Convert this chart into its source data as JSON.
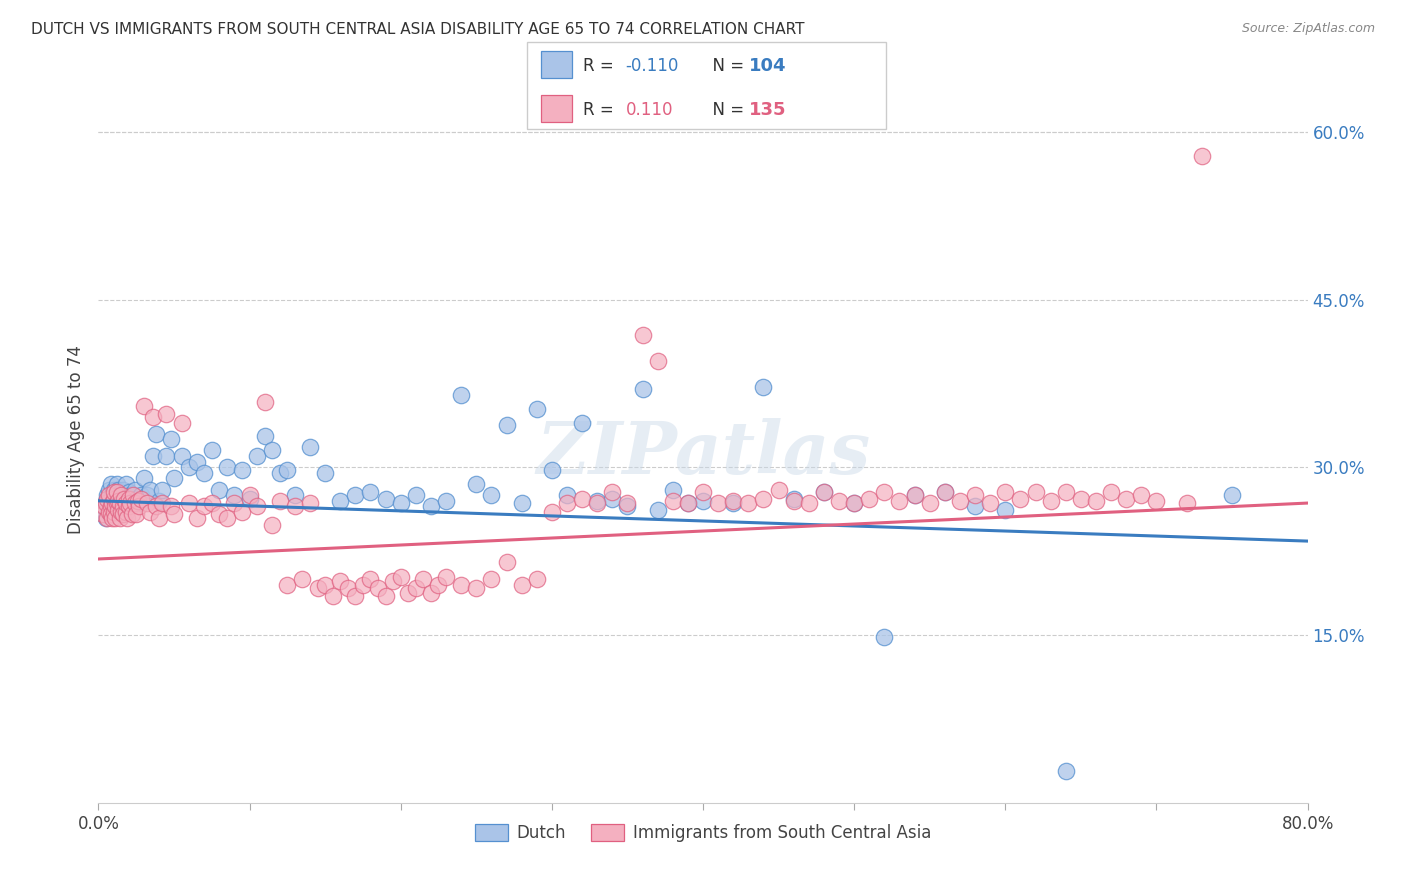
{
  "title": "DUTCH VS IMMIGRANTS FROM SOUTH CENTRAL ASIA DISABILITY AGE 65 TO 74 CORRELATION CHART",
  "source": "Source: ZipAtlas.com",
  "ylabel": "Disability Age 65 to 74",
  "xlim": [
    0.0,
    0.8
  ],
  "ylim": [
    0.0,
    0.65
  ],
  "xticks": [
    0.0,
    0.1,
    0.2,
    0.3,
    0.4,
    0.5,
    0.6,
    0.7,
    0.8
  ],
  "xticklabels": [
    "0.0%",
    "",
    "",
    "",
    "",
    "",
    "",
    "",
    "80.0%"
  ],
  "yticks_right": [
    0.15,
    0.3,
    0.45,
    0.6
  ],
  "ytick_labels_right": [
    "15.0%",
    "30.0%",
    "45.0%",
    "60.0%"
  ],
  "dutch_fill_color": "#aac4e8",
  "dutch_edge_color": "#5590d0",
  "immigrant_fill_color": "#f4b0c0",
  "immigrant_edge_color": "#e06080",
  "dutch_line_color": "#3a7cc0",
  "immigrant_line_color": "#e06080",
  "dutch_R": -0.11,
  "dutch_N": 104,
  "immigrant_R": 0.11,
  "immigrant_N": 135,
  "watermark": "ZIPatlas",
  "background_color": "#ffffff",
  "dutch_trend_x0": 0.0,
  "dutch_trend_y0": 0.27,
  "dutch_trend_x1": 0.8,
  "dutch_trend_y1": 0.234,
  "imm_trend_x0": 0.0,
  "imm_trend_y0": 0.218,
  "imm_trend_x1": 0.8,
  "imm_trend_y1": 0.268,
  "dutch_scatter_x": [
    0.003,
    0.005,
    0.005,
    0.006,
    0.007,
    0.007,
    0.008,
    0.008,
    0.009,
    0.009,
    0.01,
    0.01,
    0.01,
    0.011,
    0.011,
    0.012,
    0.012,
    0.013,
    0.013,
    0.014,
    0.014,
    0.015,
    0.015,
    0.016,
    0.016,
    0.017,
    0.018,
    0.018,
    0.019,
    0.02,
    0.02,
    0.021,
    0.022,
    0.023,
    0.024,
    0.025,
    0.026,
    0.027,
    0.028,
    0.03,
    0.032,
    0.034,
    0.036,
    0.038,
    0.04,
    0.042,
    0.045,
    0.048,
    0.05,
    0.055,
    0.06,
    0.065,
    0.07,
    0.075,
    0.08,
    0.085,
    0.09,
    0.095,
    0.1,
    0.105,
    0.11,
    0.115,
    0.12,
    0.125,
    0.13,
    0.14,
    0.15,
    0.16,
    0.17,
    0.18,
    0.19,
    0.2,
    0.21,
    0.22,
    0.23,
    0.24,
    0.25,
    0.26,
    0.27,
    0.28,
    0.29,
    0.3,
    0.31,
    0.32,
    0.33,
    0.34,
    0.35,
    0.36,
    0.37,
    0.38,
    0.39,
    0.4,
    0.42,
    0.44,
    0.46,
    0.48,
    0.5,
    0.52,
    0.54,
    0.56,
    0.58,
    0.6,
    0.64,
    0.75
  ],
  "dutch_scatter_y": [
    0.265,
    0.27,
    0.255,
    0.275,
    0.26,
    0.28,
    0.268,
    0.285,
    0.265,
    0.275,
    0.272,
    0.28,
    0.26,
    0.268,
    0.275,
    0.265,
    0.285,
    0.27,
    0.28,
    0.268,
    0.272,
    0.265,
    0.278,
    0.27,
    0.28,
    0.268,
    0.272,
    0.285,
    0.265,
    0.278,
    0.268,
    0.275,
    0.27,
    0.268,
    0.28,
    0.272,
    0.268,
    0.27,
    0.275,
    0.29,
    0.275,
    0.28,
    0.31,
    0.33,
    0.27,
    0.28,
    0.31,
    0.325,
    0.29,
    0.31,
    0.3,
    0.305,
    0.295,
    0.315,
    0.28,
    0.3,
    0.275,
    0.298,
    0.272,
    0.31,
    0.328,
    0.315,
    0.295,
    0.298,
    0.275,
    0.318,
    0.295,
    0.27,
    0.275,
    0.278,
    0.272,
    0.268,
    0.275,
    0.265,
    0.27,
    0.365,
    0.285,
    0.275,
    0.338,
    0.268,
    0.352,
    0.298,
    0.275,
    0.34,
    0.27,
    0.272,
    0.265,
    0.37,
    0.262,
    0.28,
    0.268,
    0.27,
    0.268,
    0.372,
    0.272,
    0.278,
    0.268,
    0.148,
    0.275,
    0.278,
    0.265,
    0.262,
    0.028,
    0.275
  ],
  "immigrant_scatter_x": [
    0.003,
    0.004,
    0.005,
    0.006,
    0.006,
    0.007,
    0.007,
    0.008,
    0.008,
    0.009,
    0.009,
    0.01,
    0.01,
    0.01,
    0.011,
    0.011,
    0.012,
    0.012,
    0.013,
    0.013,
    0.014,
    0.014,
    0.015,
    0.015,
    0.016,
    0.016,
    0.017,
    0.018,
    0.018,
    0.019,
    0.02,
    0.02,
    0.021,
    0.022,
    0.023,
    0.024,
    0.025,
    0.026,
    0.027,
    0.028,
    0.03,
    0.032,
    0.034,
    0.036,
    0.038,
    0.04,
    0.042,
    0.045,
    0.048,
    0.05,
    0.055,
    0.06,
    0.065,
    0.07,
    0.075,
    0.08,
    0.085,
    0.09,
    0.095,
    0.1,
    0.105,
    0.11,
    0.115,
    0.12,
    0.125,
    0.13,
    0.135,
    0.14,
    0.145,
    0.15,
    0.155,
    0.16,
    0.165,
    0.17,
    0.175,
    0.18,
    0.185,
    0.19,
    0.195,
    0.2,
    0.205,
    0.21,
    0.215,
    0.22,
    0.225,
    0.23,
    0.24,
    0.25,
    0.26,
    0.27,
    0.28,
    0.29,
    0.3,
    0.31,
    0.32,
    0.33,
    0.34,
    0.35,
    0.36,
    0.37,
    0.38,
    0.39,
    0.4,
    0.41,
    0.42,
    0.43,
    0.44,
    0.45,
    0.46,
    0.47,
    0.48,
    0.49,
    0.5,
    0.51,
    0.52,
    0.53,
    0.54,
    0.55,
    0.56,
    0.57,
    0.58,
    0.59,
    0.6,
    0.61,
    0.62,
    0.63,
    0.64,
    0.65,
    0.66,
    0.67,
    0.68,
    0.69,
    0.7,
    0.72,
    0.73
  ],
  "immigrant_scatter_y": [
    0.258,
    0.265,
    0.268,
    0.255,
    0.272,
    0.26,
    0.275,
    0.265,
    0.258,
    0.268,
    0.255,
    0.272,
    0.26,
    0.278,
    0.265,
    0.255,
    0.268,
    0.278,
    0.262,
    0.27,
    0.255,
    0.268,
    0.26,
    0.275,
    0.265,
    0.258,
    0.272,
    0.26,
    0.268,
    0.255,
    0.272,
    0.265,
    0.268,
    0.258,
    0.275,
    0.268,
    0.258,
    0.27,
    0.265,
    0.272,
    0.355,
    0.268,
    0.26,
    0.345,
    0.265,
    0.255,
    0.268,
    0.348,
    0.265,
    0.258,
    0.34,
    0.268,
    0.255,
    0.265,
    0.268,
    0.258,
    0.255,
    0.268,
    0.26,
    0.275,
    0.265,
    0.358,
    0.248,
    0.27,
    0.195,
    0.265,
    0.2,
    0.268,
    0.192,
    0.195,
    0.185,
    0.198,
    0.192,
    0.185,
    0.195,
    0.2,
    0.192,
    0.185,
    0.198,
    0.202,
    0.188,
    0.192,
    0.2,
    0.188,
    0.195,
    0.202,
    0.195,
    0.192,
    0.2,
    0.215,
    0.195,
    0.2,
    0.26,
    0.268,
    0.272,
    0.268,
    0.278,
    0.268,
    0.418,
    0.395,
    0.27,
    0.268,
    0.278,
    0.268,
    0.27,
    0.268,
    0.272,
    0.28,
    0.27,
    0.268,
    0.278,
    0.27,
    0.268,
    0.272,
    0.278,
    0.27,
    0.275,
    0.268,
    0.278,
    0.27,
    0.275,
    0.268,
    0.278,
    0.272,
    0.278,
    0.27,
    0.278,
    0.272,
    0.27,
    0.278,
    0.272,
    0.275,
    0.27,
    0.268,
    0.578
  ]
}
